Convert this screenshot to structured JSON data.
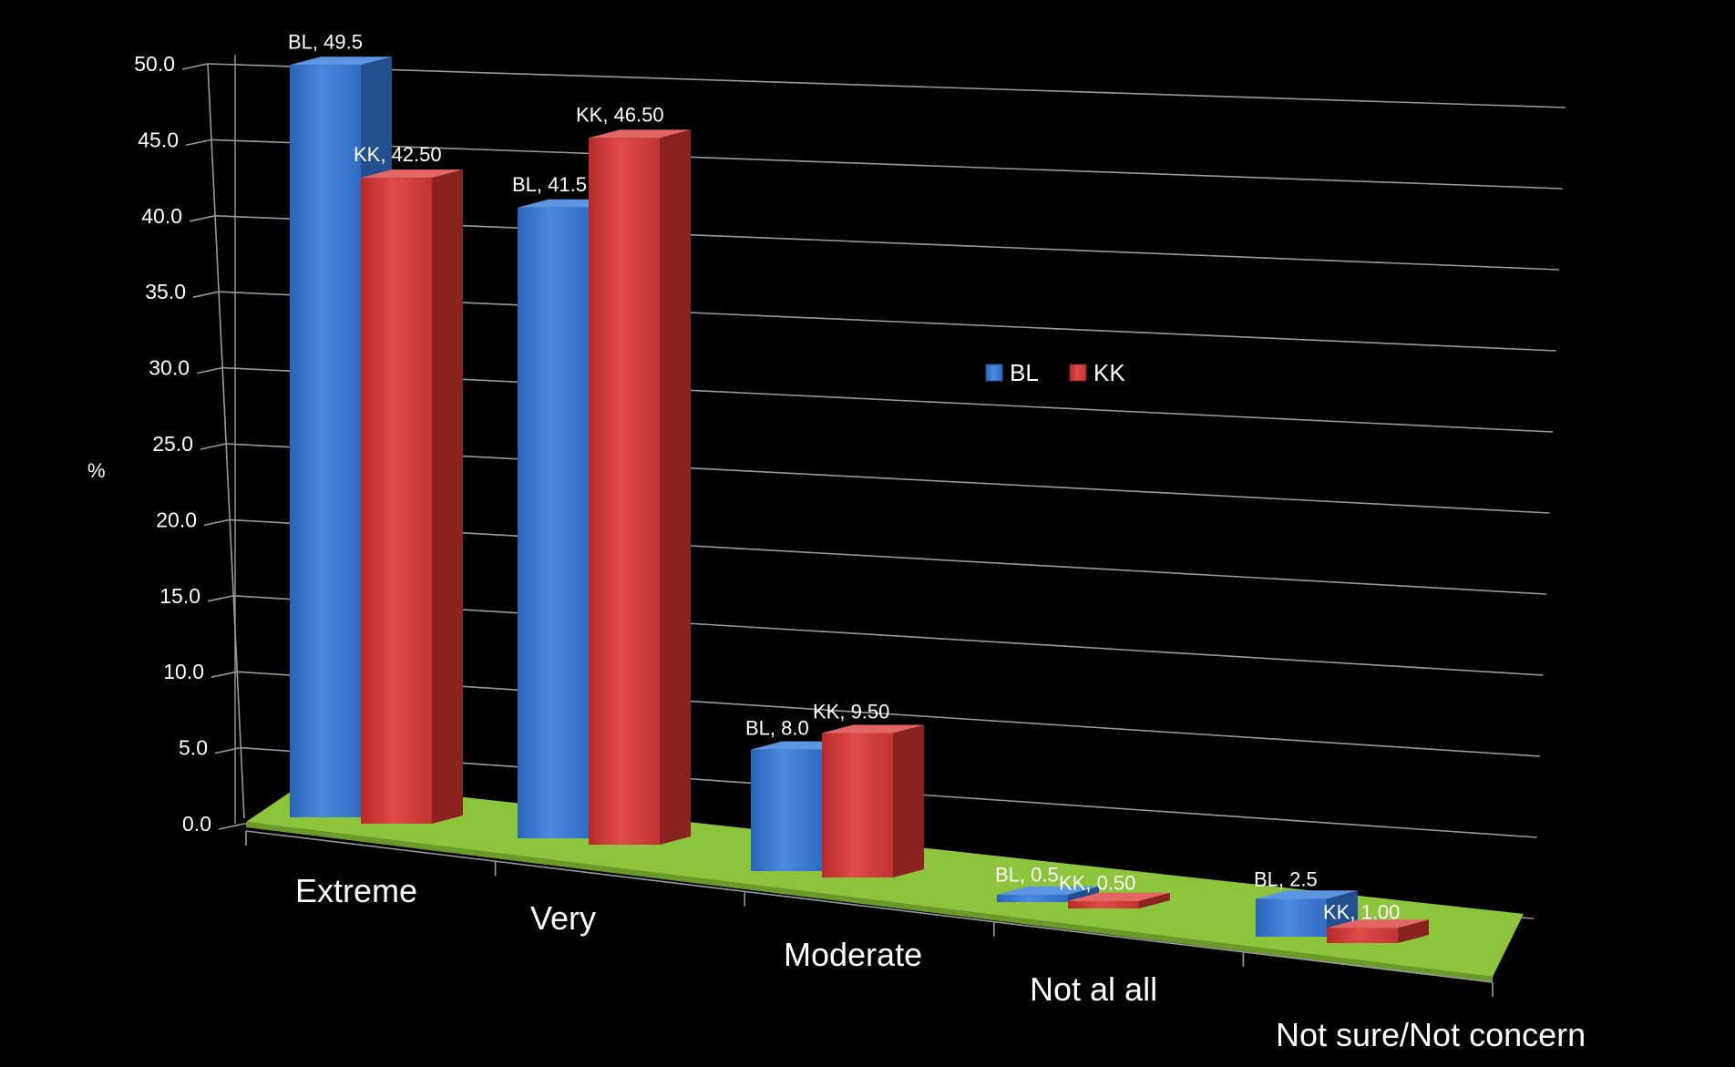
{
  "chart_data": {
    "type": "bar",
    "categories": [
      "Extreme",
      "Very",
      "Moderate",
      "Not al all",
      "Not sure/Not concern"
    ],
    "series": [
      {
        "name": "BL",
        "values": [
          49.5,
          41.5,
          8.0,
          0.5,
          2.5
        ],
        "labels": [
          "BL, 49.5",
          "BL, 41.5",
          "BL, 8.0",
          "BL, 0.5",
          "BL, 2.5"
        ],
        "color": "#3f7fd6"
      },
      {
        "name": "KK",
        "values": [
          42.5,
          46.5,
          9.5,
          0.5,
          1.0
        ],
        "labels": [
          "KK, 42.50",
          "KK, 46.50",
          "KK, 9.50",
          "KK, 0.50",
          "KK, 1.00"
        ],
        "color": "#d23a38"
      }
    ],
    "ylabel": "%",
    "ylim": [
      0,
      50
    ],
    "yticks": [
      "0.0",
      "5.0",
      "10.0",
      "15.0",
      "20.0",
      "25.0",
      "30.0",
      "35.0",
      "40.0",
      "45.0",
      "50.0"
    ],
    "floor_color": "#8cc43c",
    "grid": true,
    "legend_position": "center-right"
  }
}
